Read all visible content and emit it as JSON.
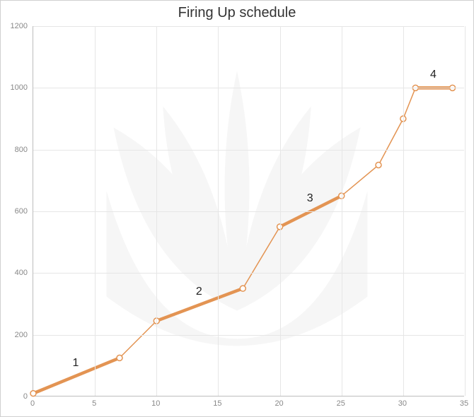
{
  "chart": {
    "type": "line",
    "title": "Firing Up schedule",
    "title_fontsize": 20,
    "background_color": "#ffffff",
    "grid_color": "#e6e6e6",
    "axis_color": "#bdbdbd",
    "tick_label_color": "#888888",
    "tick_fontsize": 11,
    "line_color": "#e39453",
    "thin_line_width": 1.5,
    "thick_line_width": 4.5,
    "marker_radius": 4,
    "marker_fill": "#ffffff",
    "xlim": [
      0,
      35
    ],
    "ylim": [
      0,
      1200
    ],
    "xtick_step": 5,
    "ytick_step": 200,
    "xticks": [
      0,
      5,
      10,
      15,
      20,
      25,
      30,
      35
    ],
    "yticks": [
      0,
      200,
      400,
      600,
      800,
      1000,
      1200
    ],
    "points": [
      {
        "x": 0,
        "y": 10
      },
      {
        "x": 7,
        "y": 125
      },
      {
        "x": 10,
        "y": 245
      },
      {
        "x": 17,
        "y": 350
      },
      {
        "x": 20,
        "y": 550
      },
      {
        "x": 25,
        "y": 650
      },
      {
        "x": 28,
        "y": 750
      },
      {
        "x": 30,
        "y": 900
      },
      {
        "x": 31,
        "y": 1000
      },
      {
        "x": 34,
        "y": 1000
      }
    ],
    "thick_segments": [
      {
        "from": 0,
        "to": 1,
        "label": "1"
      },
      {
        "from": 2,
        "to": 3,
        "label": "2"
      },
      {
        "from": 4,
        "to": 5,
        "label": "3"
      },
      {
        "from": 8,
        "to": 9,
        "label": "4"
      }
    ],
    "segment_label_fontsize": 16,
    "segment_label_color": "#222222",
    "watermark_color": "#f5f5f5"
  }
}
